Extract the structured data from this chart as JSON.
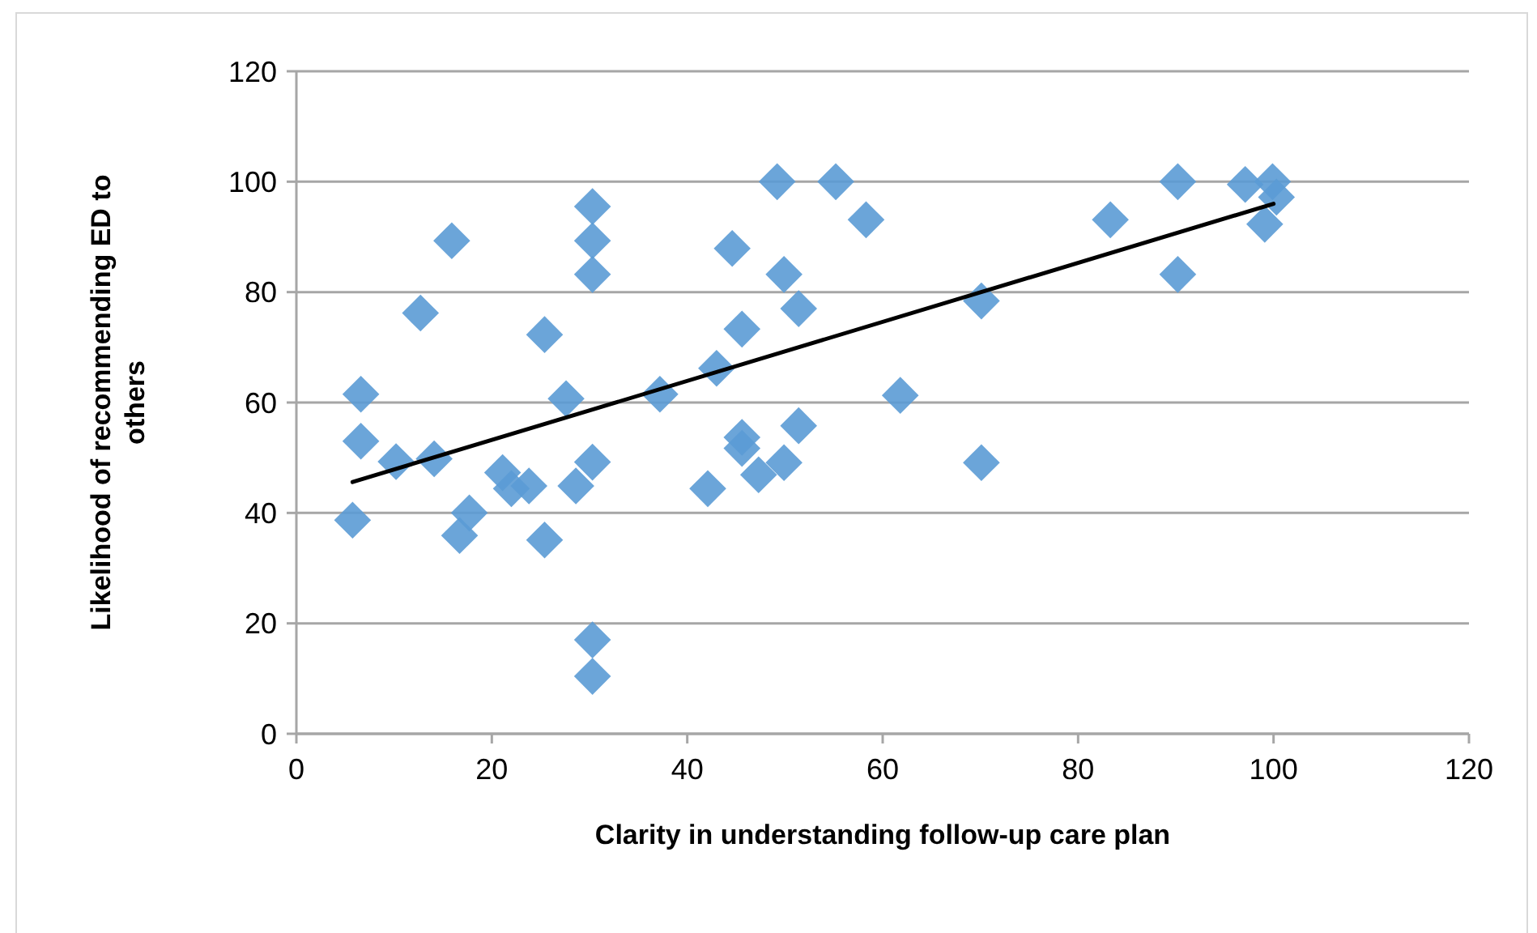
{
  "chart_data": {
    "type": "scatter",
    "xlabel": "Clarity in understanding follow-up care plan",
    "ylabel": "Likelihood of recommending ED to others",
    "xlim": [
      0,
      120
    ],
    "xticks": [
      0,
      20,
      40,
      60,
      80,
      100,
      120
    ],
    "ylim": [
      0,
      120
    ],
    "yticks": [
      0,
      20,
      40,
      60,
      80,
      100,
      120
    ],
    "grid": "y",
    "marker": "diamond",
    "series": [
      {
        "color": "#5b9bd5",
        "x": [
          5.75,
          6.6,
          6.6,
          10.2,
          12.7,
          14.1,
          15.9,
          16.7,
          17.7,
          21.1,
          22,
          23.8,
          25.4,
          25.4,
          27.6,
          28.6,
          30.3,
          30.3,
          30.3,
          30.3,
          30.3,
          30.3,
          37.2,
          42.1,
          43,
          44.6,
          45.6,
          45.6,
          45.6,
          47.3,
          49.2,
          49.9,
          49.9,
          51.4,
          51.4,
          55.2,
          58.3,
          61.8,
          70.1,
          70.1,
          83.3,
          90.2,
          90.2,
          97.1,
          99.9,
          99.1,
          100.3
        ],
        "values": [
          38.7,
          61.5,
          53,
          49.3,
          76.2,
          49.8,
          89.3,
          35.9,
          40,
          47.3,
          44.4,
          44.9,
          72.3,
          35.1,
          60.7,
          44.9,
          95.5,
          89.3,
          83.2,
          49.2,
          17,
          10.4,
          61.5,
          44.4,
          66.2,
          87.9,
          73.3,
          53.7,
          51.7,
          46.9,
          100,
          83.2,
          49.1,
          77,
          55.8,
          100,
          93.1,
          61.3,
          78.4,
          49.1,
          93.1,
          100,
          83.2,
          99.5,
          100,
          92.3,
          97.2
        ]
      },
      {
        "type": "line",
        "color": "#000000",
        "marker": "none",
        "line_style": "solid",
        "x": [
          5.75,
          100
        ],
        "values": [
          45.6,
          96
        ]
      }
    ]
  }
}
